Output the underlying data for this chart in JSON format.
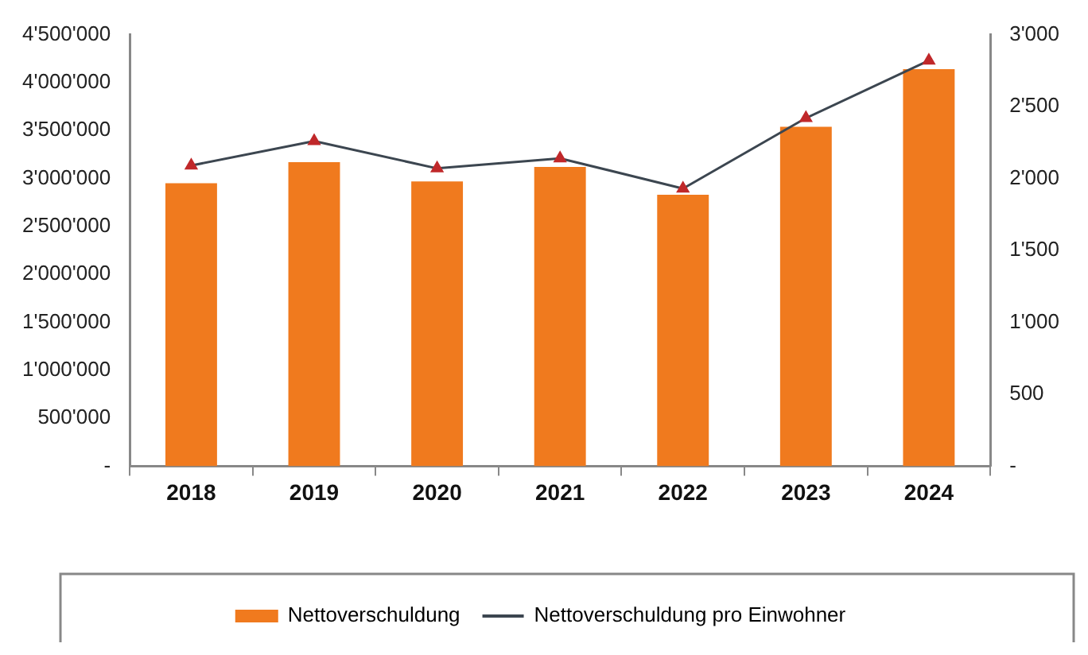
{
  "chart_data": {
    "type": "bar",
    "categories": [
      "2018",
      "2019",
      "2020",
      "2021",
      "2022",
      "2023",
      "2024"
    ],
    "series": [
      {
        "name": "Nettoverschuldung",
        "color": "#f07a1e",
        "values": [
          2950000,
          3170000,
          2970000,
          3120000,
          2830000,
          3540000,
          4140000
        ]
      },
      {
        "name": "Nettoverschuldung pro Einwohner",
        "type": "line",
        "axis": "y2",
        "color": "#3c4650",
        "marker": "triangle",
        "values": [
          2090,
          2260,
          2070,
          2140,
          1930,
          2420,
          2820
        ]
      }
    ],
    "ylim": [
      0,
      4500000
    ],
    "yticks": [
      {
        "value": 0,
        "label": "-"
      },
      {
        "value": 500000,
        "label": "500'000"
      },
      {
        "value": 1000000,
        "label": "1'000'000"
      },
      {
        "value": 1500000,
        "label": "1'500'000"
      },
      {
        "value": 2000000,
        "label": "2'000'000"
      },
      {
        "value": 2500000,
        "label": "2'500'000"
      },
      {
        "value": 3000000,
        "label": "3'000'000"
      },
      {
        "value": 3500000,
        "label": "3'500'000"
      },
      {
        "value": 4000000,
        "label": "4'000'000"
      },
      {
        "value": 4500000,
        "label": "4'500'000"
      }
    ],
    "y2lim": [
      0,
      3000
    ],
    "y2ticks": [
      {
        "value": 0,
        "label": "-"
      },
      {
        "value": 500,
        "label": "500"
      },
      {
        "value": 1000,
        "label": "1'000"
      },
      {
        "value": 1500,
        "label": "1'500"
      },
      {
        "value": 2000,
        "label": "2'000"
      },
      {
        "value": 2500,
        "label": "2'500"
      },
      {
        "value": 3000,
        "label": "3'000"
      }
    ],
    "grid": false,
    "legend": "bottom"
  }
}
